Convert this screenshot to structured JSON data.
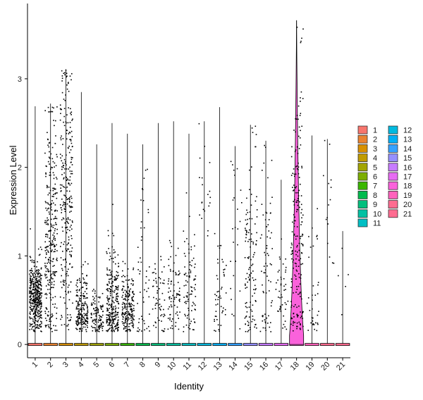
{
  "chart_data": {
    "type": "violin",
    "xlabel": "Identity",
    "ylabel": "Expression Level",
    "title": "",
    "ylim": [
      -0.15,
      3.85
    ],
    "y_ticks": [
      0,
      1,
      2,
      3
    ],
    "categories": [
      "1",
      "2",
      "3",
      "4",
      "5",
      "6",
      "7",
      "8",
      "9",
      "10",
      "11",
      "12",
      "13",
      "14",
      "15",
      "16",
      "17",
      "18",
      "19",
      "20",
      "21"
    ],
    "series": [
      {
        "category": "1",
        "color": "#F8766D",
        "max": 2.69,
        "points": 420,
        "center": 0.55,
        "spread": 0.2
      },
      {
        "category": "2",
        "color": "#EA8331",
        "max": 2.72,
        "points": 300,
        "center": 1.2,
        "spread": 0.7
      },
      {
        "category": "3",
        "color": "#D89000",
        "max": 3.11,
        "points": 280,
        "center": 1.6,
        "spread": 0.8
      },
      {
        "category": "4",
        "color": "#C09B00",
        "max": 2.85,
        "points": 200,
        "center": 0.35,
        "spread": 0.25
      },
      {
        "category": "5",
        "color": "#A3A500",
        "max": 2.26,
        "points": 110,
        "center": 0.3,
        "spread": 0.15
      },
      {
        "category": "6",
        "color": "#7CAE00",
        "max": 2.5,
        "points": 260,
        "center": 0.45,
        "spread": 0.35
      },
      {
        "category": "7",
        "color": "#39B600",
        "max": 2.38,
        "points": 200,
        "center": 0.4,
        "spread": 0.2
      },
      {
        "category": "8",
        "color": "#00BB4E",
        "max": 2.26,
        "points": 50,
        "center": 0.8,
        "spread": 0.7
      },
      {
        "category": "9",
        "color": "#00BF7D",
        "max": 2.5,
        "points": 60,
        "center": 0.5,
        "spread": 0.3
      },
      {
        "category": "10",
        "color": "#00C1A3",
        "max": 2.52,
        "points": 80,
        "center": 0.55,
        "spread": 0.25
      },
      {
        "category": "11",
        "color": "#00BFC4",
        "max": 2.38,
        "points": 90,
        "center": 0.6,
        "spread": 0.4
      },
      {
        "category": "12",
        "color": "#00BAE0",
        "max": 2.52,
        "points": 20,
        "center": 1.8,
        "spread": 0.4
      },
      {
        "category": "13",
        "color": "#00B0F6",
        "max": 2.68,
        "points": 50,
        "center": 0.6,
        "spread": 0.35
      },
      {
        "category": "14",
        "color": "#35A2FF",
        "max": 2.24,
        "points": 25,
        "center": 1.3,
        "spread": 0.6
      },
      {
        "category": "15",
        "color": "#9590FF",
        "max": 2.48,
        "points": 120,
        "center": 1.0,
        "spread": 0.7
      },
      {
        "category": "16",
        "color": "#C77CFF",
        "max": 2.3,
        "points": 70,
        "center": 0.8,
        "spread": 0.6
      },
      {
        "category": "17",
        "color": "#E76BF3",
        "max": 1.86,
        "points": 45,
        "center": 0.6,
        "spread": 0.35
      },
      {
        "category": "18",
        "color": "#FA62DB",
        "max": 3.66,
        "points": 200,
        "center": 1.2,
        "spread": 0.9,
        "filled_violin": true
      },
      {
        "category": "19",
        "color": "#FF62BC",
        "max": 2.36,
        "points": 35,
        "center": 0.6,
        "spread": 0.5
      },
      {
        "category": "20",
        "color": "#FF6C91",
        "max": 2.32,
        "points": 15,
        "center": 1.6,
        "spread": 0.6
      },
      {
        "category": "21",
        "color": "#FF6C91",
        "max": 1.28,
        "points": 5,
        "center": 0.7,
        "spread": 0.3
      }
    ],
    "legend": {
      "placement": "right",
      "entries": [
        {
          "label": "1",
          "color": "#F8766D"
        },
        {
          "label": "2",
          "color": "#EA8331"
        },
        {
          "label": "3",
          "color": "#D89000"
        },
        {
          "label": "4",
          "color": "#C09B00"
        },
        {
          "label": "5",
          "color": "#A3A500"
        },
        {
          "label": "6",
          "color": "#7CAE00"
        },
        {
          "label": "7",
          "color": "#39B600"
        },
        {
          "label": "8",
          "color": "#00BB4E"
        },
        {
          "label": "9",
          "color": "#00BF7D"
        },
        {
          "label": "10",
          "color": "#00C1A3"
        },
        {
          "label": "11",
          "color": "#00BFC4"
        },
        {
          "label": "12",
          "color": "#00BAE0"
        },
        {
          "label": "13",
          "color": "#00B0F6"
        },
        {
          "label": "14",
          "color": "#35A2FF"
        },
        {
          "label": "15",
          "color": "#9590FF"
        },
        {
          "label": "16",
          "color": "#C77CFF"
        },
        {
          "label": "17",
          "color": "#E76BF3"
        },
        {
          "label": "18",
          "color": "#FA62DB"
        },
        {
          "label": "19",
          "color": "#FF62BC"
        },
        {
          "label": "20",
          "color": "#FF6C91"
        },
        {
          "label": "21",
          "color": "#FF6C91"
        }
      ]
    },
    "grid": false
  }
}
